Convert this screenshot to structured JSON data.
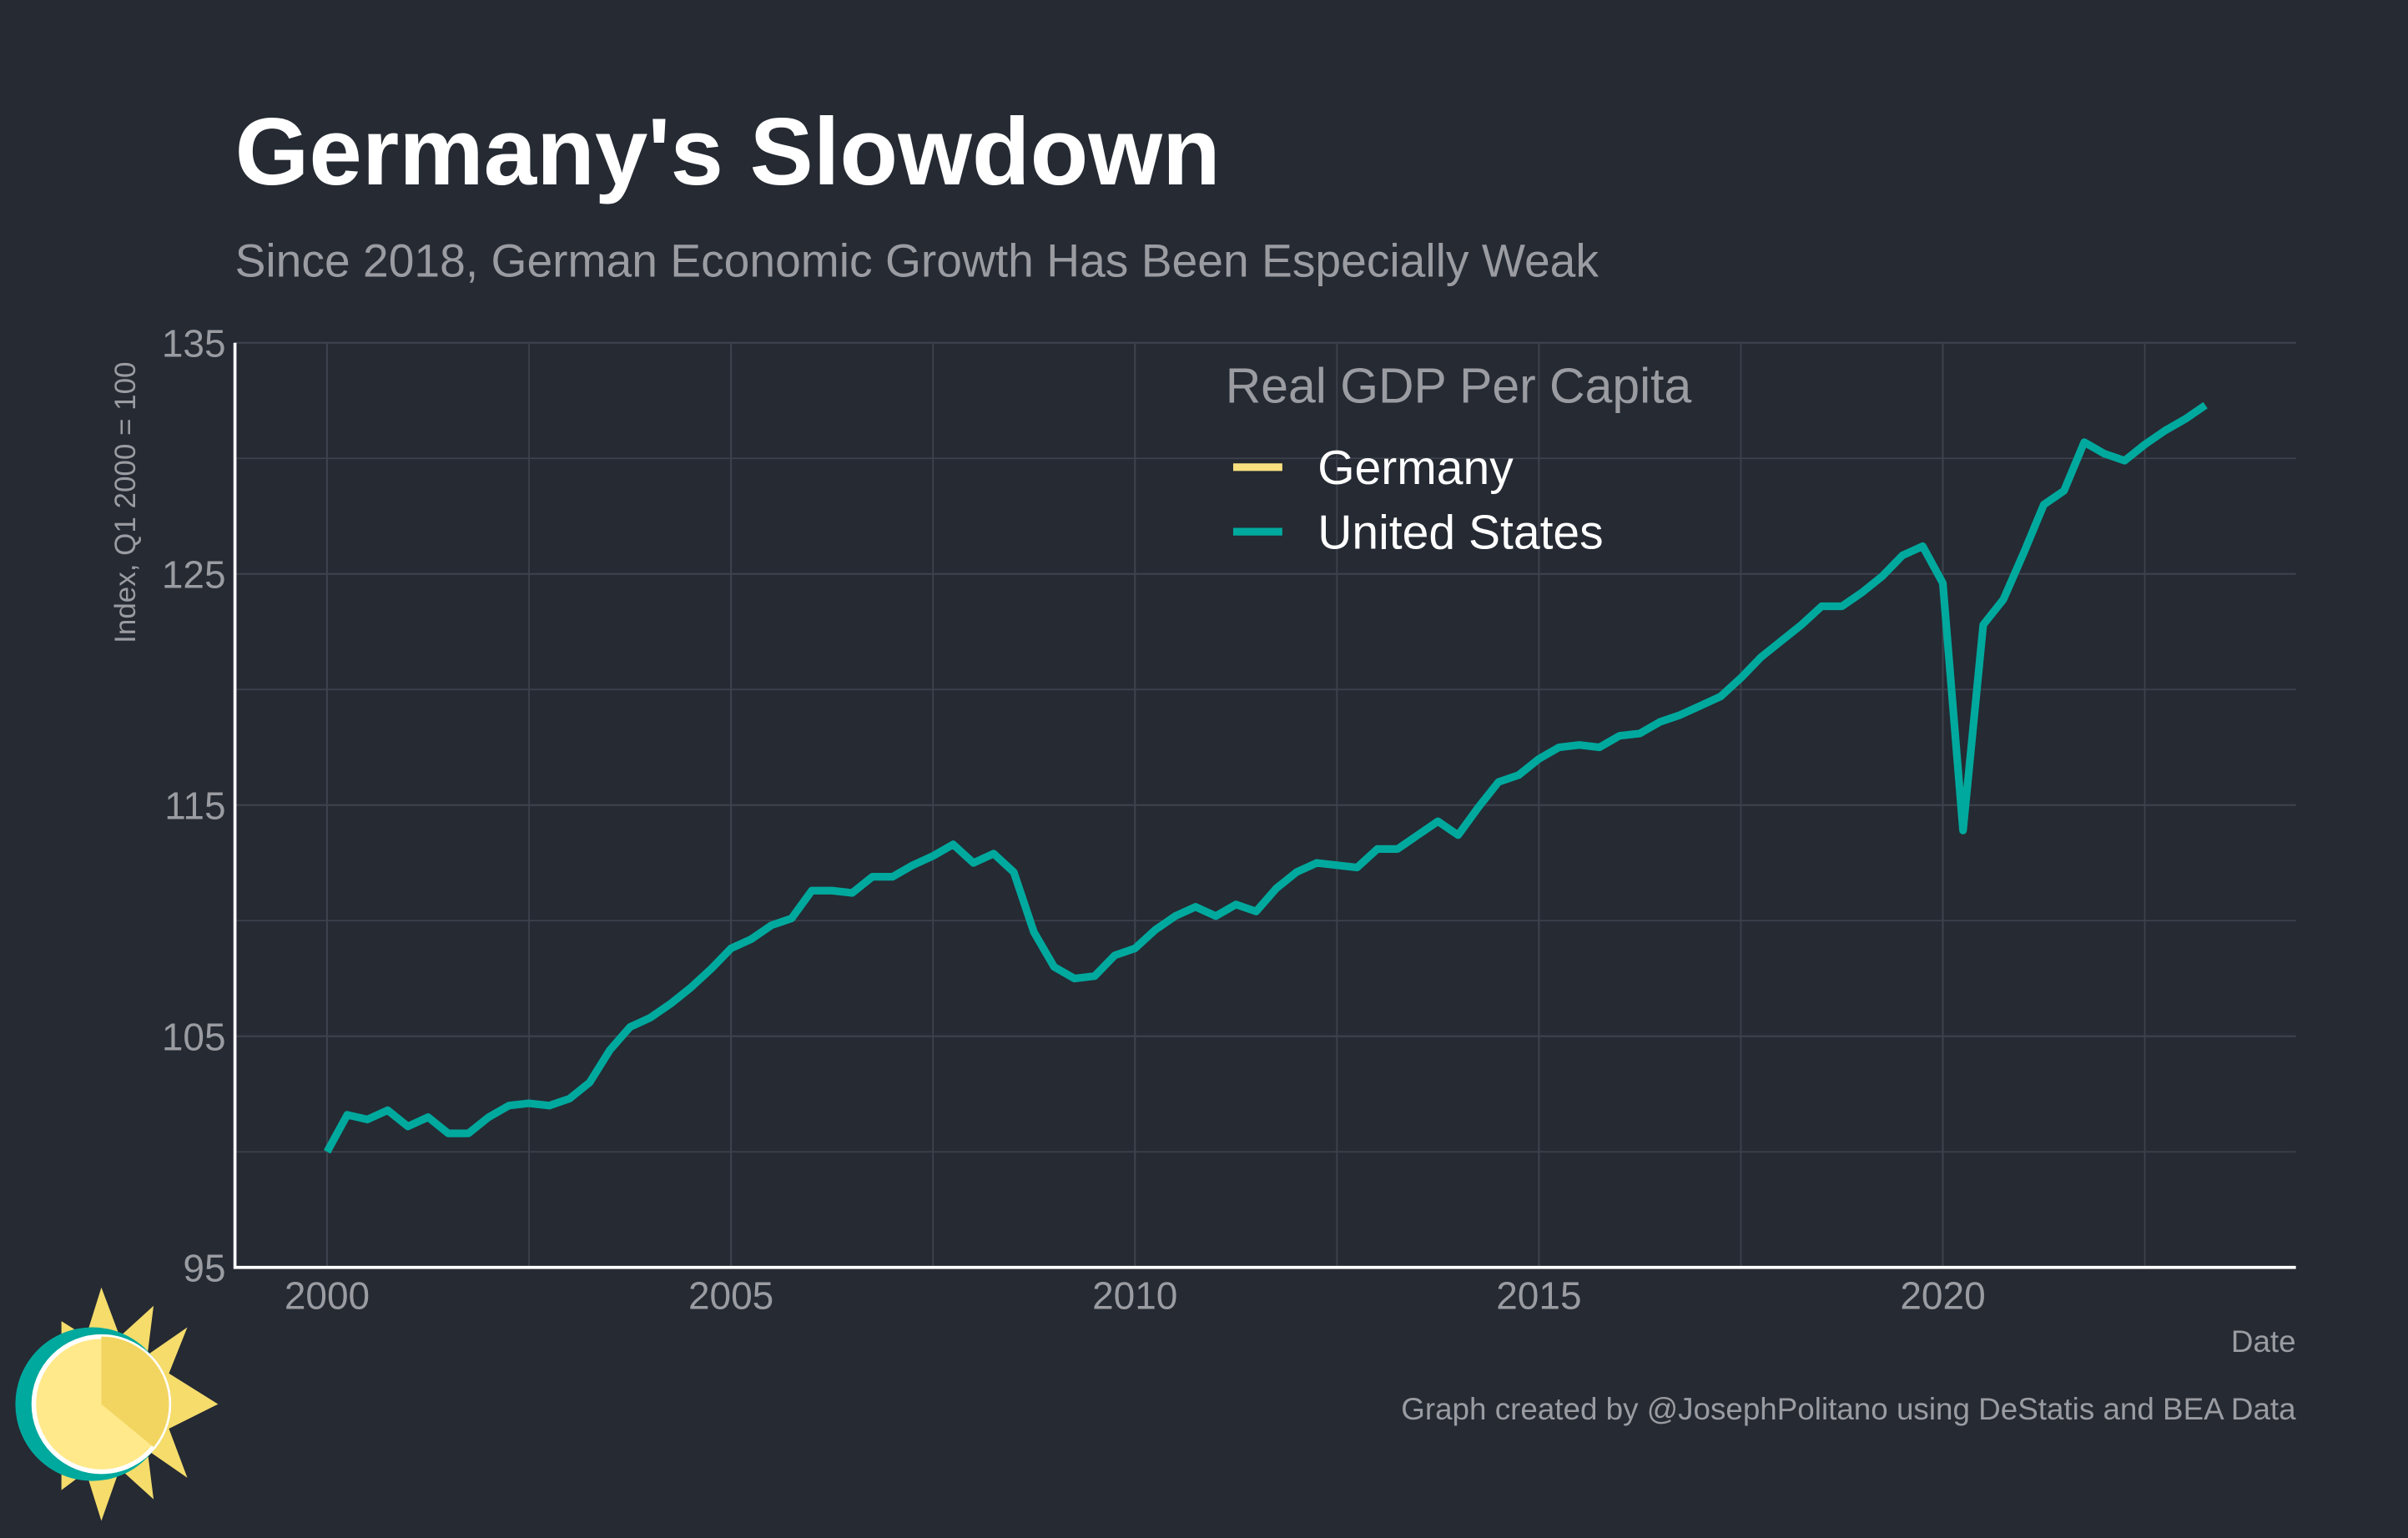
{
  "chart_data": {
    "type": "line",
    "title": "Germany's Slowdown",
    "subtitle": "Since 2018, German Economic Growth Has Been Especially Weak",
    "y_label": "Index, Q1 2000 = 100",
    "x_label": "Date",
    "caption": "Graph created by @JosephPolitano using DeStatis and BEA Data",
    "legend_title": "Real GDP Per Capita",
    "legend_position": "top",
    "grid": true,
    "x": [
      2000,
      2000.25,
      2000.5,
      2000.75,
      2001,
      2001.25,
      2001.5,
      2001.75,
      2002,
      2002.25,
      2002.5,
      2002.75,
      2003,
      2003.25,
      2003.5,
      2003.75,
      2004,
      2004.25,
      2004.5,
      2004.75,
      2005,
      2005.25,
      2005.5,
      2005.75,
      2006,
      2006.25,
      2006.5,
      2006.75,
      2007,
      2007.25,
      2007.5,
      2007.75,
      2008,
      2008.25,
      2008.5,
      2008.75,
      2009,
      2009.25,
      2009.5,
      2009.75,
      2010,
      2010.25,
      2010.5,
      2010.75,
      2011,
      2011.25,
      2011.5,
      2011.75,
      2012,
      2012.25,
      2012.5,
      2012.75,
      2013,
      2013.25,
      2013.5,
      2013.75,
      2014,
      2014.25,
      2014.5,
      2014.75,
      2015,
      2015.25,
      2015.5,
      2015.75,
      2016,
      2016.25,
      2016.5,
      2016.75,
      2017,
      2017.25,
      2017.5,
      2017.75,
      2018,
      2018.25,
      2018.5,
      2018.75,
      2019,
      2019.25,
      2019.5,
      2019.75,
      2020,
      2020.25,
      2020.5,
      2020.75,
      2021,
      2021.25,
      2021.5,
      2021.75,
      2022,
      2022.25,
      2022.5,
      2022.75,
      2023,
      2023.25
    ],
    "series": [
      {
        "name": "Germany",
        "color": "#f9e07f",
        "values": [
          null,
          null,
          null,
          null,
          null,
          null,
          null,
          null,
          null,
          null,
          null,
          null,
          null,
          null,
          null,
          null,
          null,
          null,
          null,
          null,
          null,
          null,
          null,
          null,
          null,
          null,
          null,
          null,
          null,
          null,
          null,
          null,
          null,
          null,
          null,
          null,
          null,
          null,
          null,
          null,
          null,
          null,
          null,
          null,
          null,
          null,
          null,
          null,
          null,
          null,
          null,
          null,
          null,
          null,
          null,
          null,
          null,
          null,
          null,
          null,
          null,
          null,
          null,
          null,
          null,
          null,
          null,
          null,
          null,
          null,
          null,
          null,
          null,
          null,
          null,
          null,
          null,
          null,
          null,
          null,
          null,
          null,
          null,
          null,
          null,
          null,
          null,
          null,
          null,
          null,
          null,
          null,
          null,
          null
        ]
      },
      {
        "name": "United States",
        "color": "#00a99d",
        "values": [
          100.0,
          101.6,
          101.4,
          101.8,
          101.1,
          101.5,
          100.8,
          100.8,
          101.5,
          102.0,
          102.1,
          102.0,
          102.3,
          103.0,
          104.4,
          105.4,
          105.8,
          106.4,
          107.1,
          107.9,
          108.8,
          109.2,
          109.8,
          110.1,
          111.3,
          111.3,
          111.2,
          111.9,
          111.9,
          112.4,
          112.8,
          113.3,
          112.5,
          112.9,
          112.1,
          109.5,
          108.0,
          107.5,
          107.6,
          108.5,
          108.8,
          109.6,
          110.2,
          110.6,
          110.2,
          110.7,
          110.4,
          111.4,
          112.1,
          112.5,
          112.4,
          112.3,
          113.1,
          113.1,
          113.7,
          114.3,
          113.7,
          114.9,
          116.0,
          116.3,
          117.0,
          117.5,
          117.6,
          117.5,
          118.0,
          118.1,
          118.6,
          118.9,
          119.3,
          119.7,
          120.5,
          121.4,
          122.1,
          122.8,
          123.6,
          123.6,
          124.2,
          124.9,
          125.8,
          126.2,
          124.6,
          113.9,
          122.8,
          123.9,
          125.9,
          128.0,
          128.6,
          130.7,
          130.2,
          129.9,
          130.6,
          131.2,
          131.7,
          132.3
        ]
      }
    ],
    "xlim": [
      1998.86,
      2024.37
    ],
    "xticks": [
      2000,
      2005,
      2010,
      2015,
      2020
    ],
    "x_minor_ticks": [
      2002.5,
      2007.5,
      2012.5,
      2017.5,
      2022.5
    ],
    "ylim": [
      95,
      135
    ],
    "yticks": [
      95,
      105,
      115,
      125,
      135
    ],
    "y_minor_ticks": [
      100,
      110,
      120,
      130
    ]
  }
}
